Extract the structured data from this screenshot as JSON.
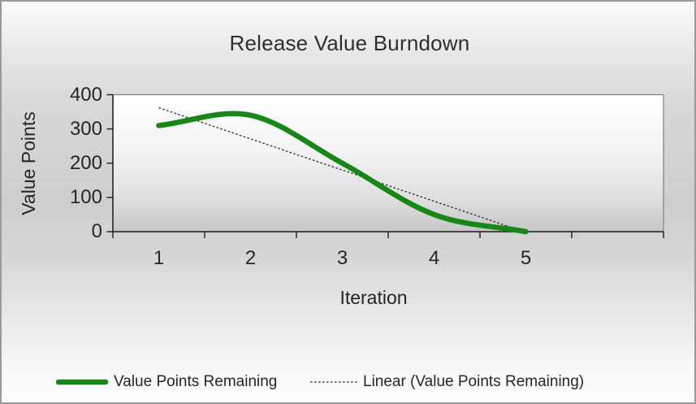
{
  "chart_data": {
    "type": "line",
    "title": "Release Value Burndown",
    "xlabel": "Iteration",
    "ylabel": "Value Points",
    "categories": [
      "1",
      "2",
      "3",
      "4",
      "5"
    ],
    "series": [
      {
        "name": "Value Points Remaining",
        "values": [
          310,
          340,
          200,
          50,
          0
        ],
        "color": "#178717",
        "line_style": "smooth-solid",
        "line_width": 6.5
      }
    ],
    "trendline": {
      "name": "Linear (Value Points Remaining)",
      "kind": "linear",
      "applies_to": "Value Points Remaining",
      "color": "#2b2b2b",
      "line_style": "dashed"
    },
    "y_ticks": [
      0,
      100,
      200,
      300,
      400
    ],
    "ylim": [
      0,
      400
    ],
    "x_slots": 6,
    "grid": false,
    "legend_position": "bottom"
  },
  "colors": {
    "text": "#262626",
    "axis_line": "#1f1f1f",
    "tick_mark": "#1f1f1f",
    "plot_border": "#7f7f7f",
    "plot_bg_top": "#ffffff",
    "plot_bg_bottom": "#c6c6c6",
    "outer_border": "#9a9a9a"
  }
}
